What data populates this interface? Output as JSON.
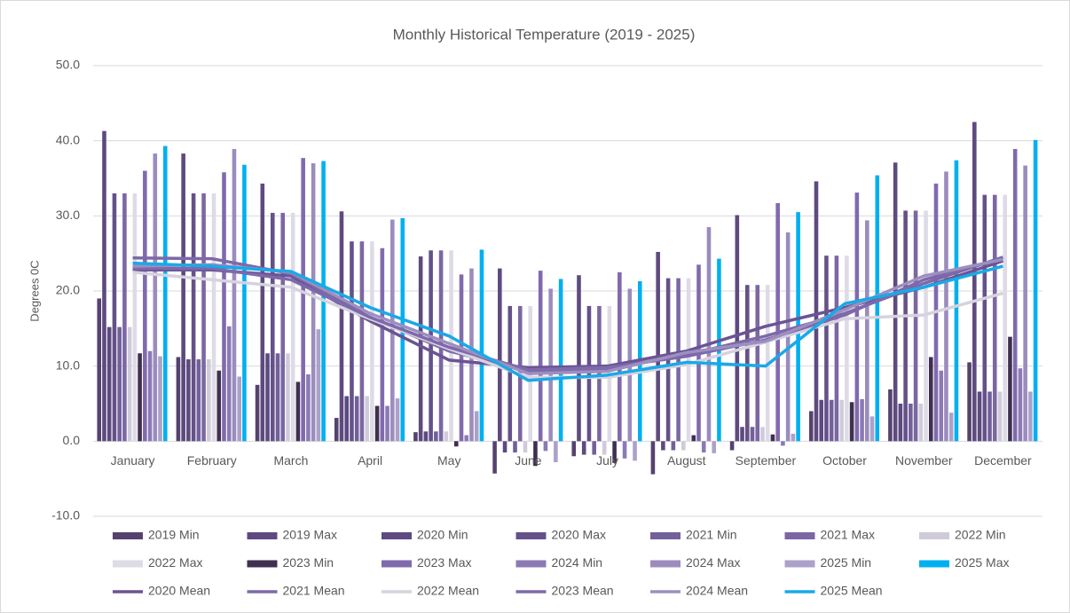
{
  "chart_data": {
    "type": "bar",
    "title": "Monthly Historical Temperature (2019 - 2025)",
    "y_label": "Degrees 0C",
    "categories": [
      "January",
      "February",
      "March",
      "April",
      "May",
      "June",
      "July",
      "August",
      "September",
      "October",
      "November",
      "December"
    ],
    "ylim": [
      -10,
      50
    ],
    "yticks": [
      {
        "value": -10,
        "label": "-10.0"
      },
      {
        "value": 0,
        "label": "0.0"
      },
      {
        "value": 10,
        "label": "10.0"
      },
      {
        "value": 20,
        "label": "20.0"
      },
      {
        "value": 30,
        "label": "30.0"
      },
      {
        "value": 40,
        "label": "40.0"
      },
      {
        "value": 50,
        "label": "50.0"
      }
    ],
    "grid": true,
    "series": [
      {
        "name": "2019 Min",
        "color": "#55426e",
        "values": [
          19,
          11.2,
          7.5,
          3.1,
          1.2,
          -4.3,
          -2,
          -4.4,
          -1.2,
          4,
          6.9,
          10.5
        ]
      },
      {
        "name": "2019 Max",
        "color": "#5e4a7f",
        "values": [
          41.3,
          38.3,
          34.3,
          30.6,
          24.6,
          23,
          22.1,
          25.2,
          30.1,
          34.6,
          37.1,
          42.5
        ]
      },
      {
        "name": "2020 Min",
        "color": "#5d4a80",
        "values": [
          15.2,
          10.9,
          11.7,
          6,
          1.3,
          -1.5,
          -1.8,
          -1.2,
          1.9,
          5.5,
          5,
          6.6
        ]
      },
      {
        "name": "2020 Max",
        "color": "#655189",
        "values": [
          33,
          33,
          30.4,
          26.6,
          25.4,
          18,
          18,
          21.7,
          20.8,
          24.7,
          30.7,
          32.8
        ]
      },
      {
        "name": "2021 Min",
        "color": "#72609a",
        "values": [
          15.2,
          10.9,
          11.7,
          6,
          1.3,
          -1.5,
          -1.8,
          -1.2,
          1.9,
          5.5,
          5,
          6.6
        ]
      },
      {
        "name": "2021 Max",
        "color": "#7b67a3",
        "values": [
          33,
          33,
          30.4,
          26.6,
          25.4,
          18,
          18,
          21.7,
          20.8,
          24.7,
          30.7,
          32.8
        ]
      },
      {
        "name": "2022 Min",
        "color": "#d0cbd9",
        "values": [
          15.2,
          10.9,
          11.7,
          6,
          1.3,
          -1.5,
          -1.8,
          -1.2,
          1.9,
          5.5,
          5,
          6.6
        ]
      },
      {
        "name": "2022 Max",
        "color": "#dedbe6",
        "values": [
          33,
          33,
          30.4,
          26.6,
          25.4,
          18,
          18,
          21.7,
          20.8,
          24.7,
          30.7,
          32.8
        ]
      },
      {
        "name": "2023 Min",
        "color": "#3f3050",
        "values": [
          11.7,
          9.4,
          7.9,
          4.7,
          -0.7,
          -3.3,
          -2.9,
          0.8,
          0.9,
          5.2,
          11.2,
          13.9
        ]
      },
      {
        "name": "2023 Max",
        "color": "#806aae",
        "values": [
          36,
          35.8,
          37.7,
          25.7,
          22.2,
          22.7,
          22.5,
          23.5,
          31.7,
          33.1,
          34.3,
          38.9
        ]
      },
      {
        "name": "2024 Min",
        "color": "#8c7ab5",
        "values": [
          12,
          15.3,
          8.9,
          4.7,
          0.8,
          -1.3,
          -2.3,
          -1.5,
          -0.6,
          5.6,
          9.4,
          9.7
        ]
      },
      {
        "name": "2024 Max",
        "color": "#9b8cbd",
        "values": [
          38.3,
          38.9,
          37,
          29.5,
          23,
          20.3,
          20.3,
          28.5,
          27.8,
          29.4,
          35.9,
          36.7
        ]
      },
      {
        "name": "2025 Min",
        "color": "#aba1c9",
        "values": [
          11.3,
          8.6,
          14.9,
          5.7,
          4,
          -2.8,
          -2.6,
          -1.6,
          1,
          3.3,
          3.8,
          6.6
        ]
      },
      {
        "name": "2025 Max",
        "color": "#00b0f0",
        "values": [
          39.3,
          36.8,
          37.3,
          29.7,
          25.5,
          21.6,
          21.3,
          24.3,
          30.5,
          35.4,
          37.4,
          40.1
        ]
      },
      {
        "name": "2020 Mean",
        "type": "line",
        "color": "#6a5494",
        "values": [
          22.8,
          22.8,
          22,
          16,
          10.8,
          9.8,
          10,
          12,
          15.3,
          17.8,
          20.5,
          24
        ]
      },
      {
        "name": "2021 Mean",
        "type": "line",
        "color": "#7e68a8",
        "values": [
          24.4,
          24.3,
          22.3,
          16.5,
          12,
          9.3,
          9.6,
          11.5,
          14,
          17,
          21,
          24.5
        ]
      },
      {
        "name": "2022 Mean",
        "type": "line",
        "color": "#d6d2de",
        "values": [
          22.5,
          21.5,
          20.5,
          16.3,
          12.3,
          8.5,
          8.5,
          10.2,
          13.2,
          16.3,
          16.8,
          19.7
        ]
      },
      {
        "name": "2023 Mean",
        "type": "line",
        "color": "#7d69ab",
        "values": [
          23,
          23,
          21.5,
          16.5,
          12.5,
          9.5,
          9.8,
          11.3,
          13.5,
          16.8,
          21.5,
          24.3
        ]
      },
      {
        "name": "2024 Mean",
        "type": "line",
        "color": "#9d8fc0",
        "values": [
          23.3,
          23.5,
          22.5,
          17,
          13,
          9,
          9.3,
          11.8,
          13.3,
          17.5,
          22,
          24.2
        ]
      },
      {
        "name": "2025 Mean",
        "type": "line",
        "color": "#1aa9e6",
        "values": [
          23.7,
          23.3,
          22.6,
          17.8,
          14,
          8.1,
          8.8,
          10.5,
          10,
          18.3,
          20.5,
          23.3
        ]
      }
    ]
  }
}
